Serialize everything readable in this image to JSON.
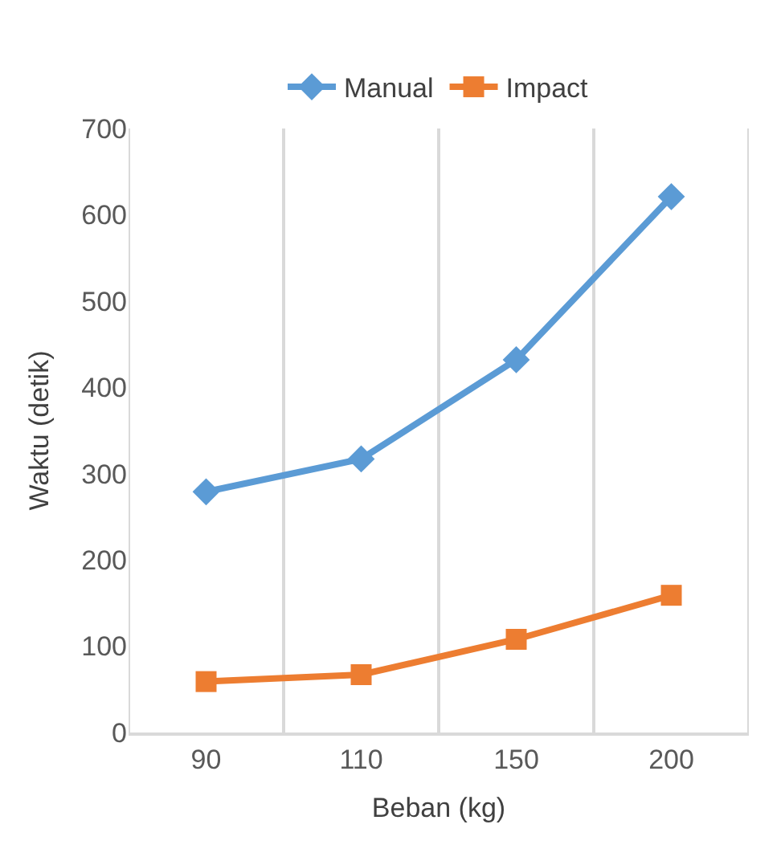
{
  "chart_data": {
    "type": "line",
    "xlabel": "Beban (kg)",
    "ylabel": "Waktu (detik)",
    "categories": [
      "90",
      "110",
      "150",
      "200"
    ],
    "series": [
      {
        "name": "Manual",
        "color": "#5b9bd5",
        "values": [
          279,
          317,
          432,
          621
        ],
        "marker": "diamond"
      },
      {
        "name": "Impact",
        "color": "#ed7d31",
        "values": [
          59,
          67,
          108,
          159
        ],
        "marker": "square"
      }
    ],
    "ylim": [
      0,
      700
    ],
    "yticks": [
      0,
      100,
      200,
      300,
      400,
      500,
      600,
      700
    ],
    "grid": "x",
    "legend": "top",
    "line_style": "solid"
  }
}
